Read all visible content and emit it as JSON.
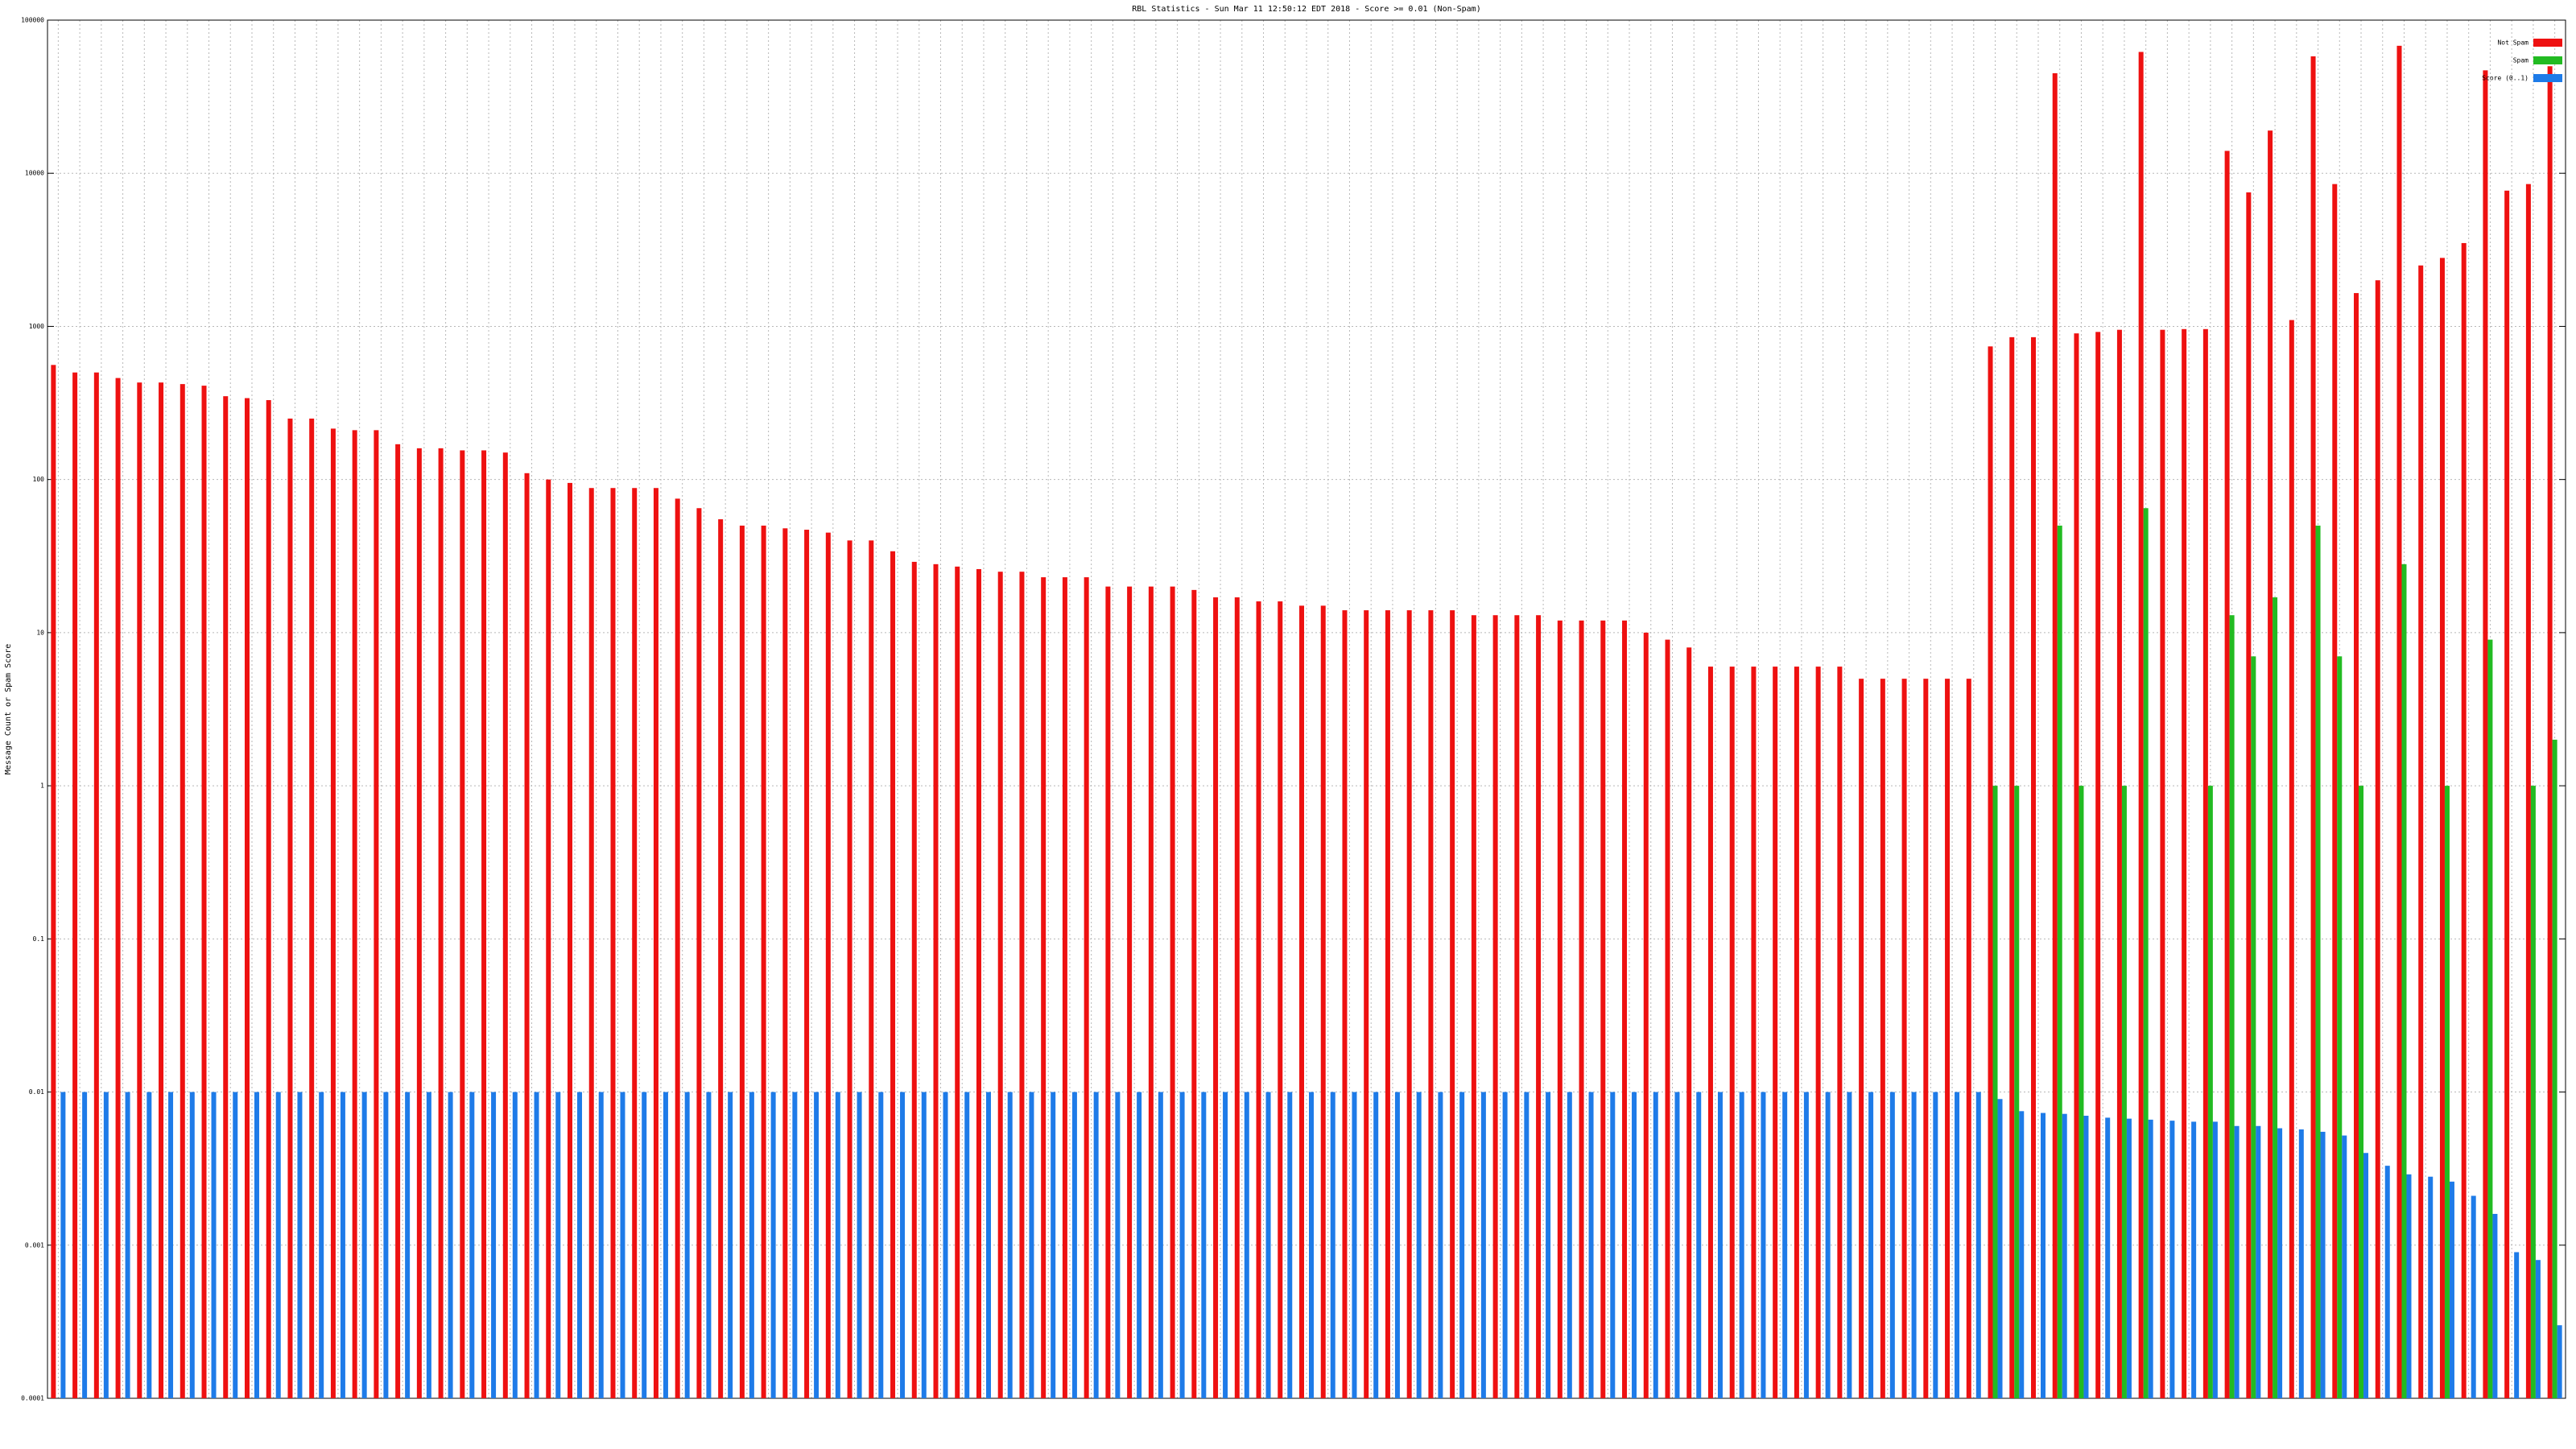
{
  "chart_data": {
    "type": "bar",
    "title": "RBL Statistics - Sun Mar 11 12:50:12 EDT 2018 - Score >= 0.01 (Non-Spam)",
    "y_label": "Message Count or Spam Score",
    "yscale": "log",
    "grid": true,
    "legend": "upper right",
    "ylim": [
      0.0001,
      100000
    ],
    "yticks": [
      0.0001,
      0.001,
      0.01,
      0.1,
      1,
      10,
      100,
      1000,
      10000,
      100000
    ],
    "categories": [
      null,
      null,
      null,
      null,
      null,
      null,
      null,
      null,
      null,
      null,
      null,
      null,
      null,
      null,
      null,
      null,
      null,
      null,
      null,
      null,
      null,
      null,
      null,
      null,
      null,
      null,
      null,
      null,
      null,
      null,
      null,
      null,
      null,
      null,
      null,
      null,
      null,
      null,
      null,
      null,
      null,
      null,
      null,
      null,
      null,
      null,
      null,
      null,
      null,
      null,
      null,
      null,
      null,
      null,
      null,
      null,
      null,
      null,
      null,
      null,
      null,
      null,
      null,
      null,
      null,
      null,
      null,
      null,
      null,
      null,
      null,
      null,
      null,
      null,
      null,
      null,
      null,
      null,
      null,
      null,
      null,
      null,
      null,
      null,
      null,
      null,
      null,
      null,
      null,
      null,
      null,
      null,
      null,
      null,
      null,
      null,
      null,
      null,
      null,
      null,
      null,
      null,
      null,
      null,
      null,
      null,
      null,
      null,
      null,
      null,
      null,
      null,
      null,
      null,
      null,
      null,
      null
    ],
    "series": [
      {
        "name": "Not Spam",
        "color": "#ee1111",
        "values": [
          560,
          500,
          500,
          460,
          430,
          430,
          420,
          410,
          350,
          340,
          330,
          250,
          250,
          215,
          210,
          210,
          170,
          160,
          160,
          155,
          155,
          150,
          110,
          100,
          95,
          88,
          88,
          88,
          88,
          75,
          65,
          55,
          50,
          50,
          48,
          47,
          45,
          40,
          40,
          34,
          29,
          28,
          27,
          26,
          25,
          25,
          23,
          23,
          23,
          20,
          20,
          20,
          20,
          19,
          17,
          17,
          16,
          16,
          15,
          15,
          14,
          14,
          14,
          14,
          14,
          14,
          13,
          13,
          13,
          13,
          12,
          12,
          12,
          12,
          10,
          9,
          8,
          6,
          6,
          6,
          6,
          6,
          6,
          6,
          5,
          5,
          5,
          5,
          5,
          5,
          740,
          850,
          850,
          45000,
          900,
          920,
          950,
          62000,
          950,
          960,
          960,
          14000,
          7500,
          19000,
          1100,
          58000,
          8500,
          1650,
          2000,
          68000,
          2500,
          2800,
          3500,
          47000,
          7700,
          8500,
          50000
        ]
      },
      {
        "name": "Spam",
        "color": "#22bb22",
        "values": [
          null,
          null,
          null,
          null,
          null,
          null,
          null,
          null,
          null,
          null,
          null,
          null,
          null,
          null,
          null,
          null,
          null,
          null,
          null,
          null,
          null,
          null,
          null,
          null,
          null,
          null,
          null,
          null,
          null,
          null,
          null,
          null,
          null,
          null,
          null,
          null,
          null,
          null,
          null,
          null,
          null,
          null,
          null,
          null,
          null,
          null,
          null,
          null,
          null,
          null,
          null,
          null,
          null,
          null,
          null,
          null,
          null,
          null,
          null,
          null,
          null,
          null,
          null,
          null,
          null,
          null,
          null,
          null,
          null,
          null,
          null,
          null,
          null,
          null,
          null,
          null,
          null,
          null,
          null,
          null,
          null,
          null,
          null,
          null,
          null,
          null,
          null,
          null,
          null,
          null,
          1,
          1,
          null,
          50,
          1,
          null,
          1,
          65,
          null,
          null,
          1,
          13,
          7,
          17,
          null,
          50,
          7,
          1,
          null,
          28,
          null,
          1,
          null,
          9,
          null,
          1,
          2
        ]
      },
      {
        "name": "Score (0..1)",
        "color": "#1e7be8",
        "values": [
          0.01,
          0.01,
          0.01,
          0.01,
          0.01,
          0.01,
          0.01,
          0.01,
          0.01,
          0.01,
          0.01,
          0.01,
          0.01,
          0.01,
          0.01,
          0.01,
          0.01,
          0.01,
          0.01,
          0.01,
          0.01,
          0.01,
          0.01,
          0.01,
          0.01,
          0.01,
          0.01,
          0.01,
          0.01,
          0.01,
          0.01,
          0.01,
          0.01,
          0.01,
          0.01,
          0.01,
          0.01,
          0.01,
          0.01,
          0.01,
          0.01,
          0.01,
          0.01,
          0.01,
          0.01,
          0.01,
          0.01,
          0.01,
          0.01,
          0.01,
          0.01,
          0.01,
          0.01,
          0.01,
          0.01,
          0.01,
          0.01,
          0.01,
          0.01,
          0.01,
          0.01,
          0.01,
          0.01,
          0.01,
          0.01,
          0.01,
          0.01,
          0.01,
          0.01,
          0.01,
          0.01,
          0.01,
          0.01,
          0.01,
          0.01,
          0.01,
          0.01,
          0.01,
          0.01,
          0.01,
          0.01,
          0.01,
          0.01,
          0.01,
          0.01,
          0.01,
          0.01,
          0.01,
          0.01,
          0.01,
          0.009,
          0.0075,
          0.0073,
          0.0072,
          0.007,
          0.0068,
          0.0067,
          0.0066,
          0.0065,
          0.0064,
          0.0064,
          0.006,
          0.006,
          0.0058,
          0.0057,
          0.0055,
          0.0052,
          0.004,
          0.0033,
          0.0029,
          0.0028,
          0.0026,
          0.0021,
          0.0016,
          0.0009,
          0.0008,
          0.0003
        ]
      }
    ]
  }
}
